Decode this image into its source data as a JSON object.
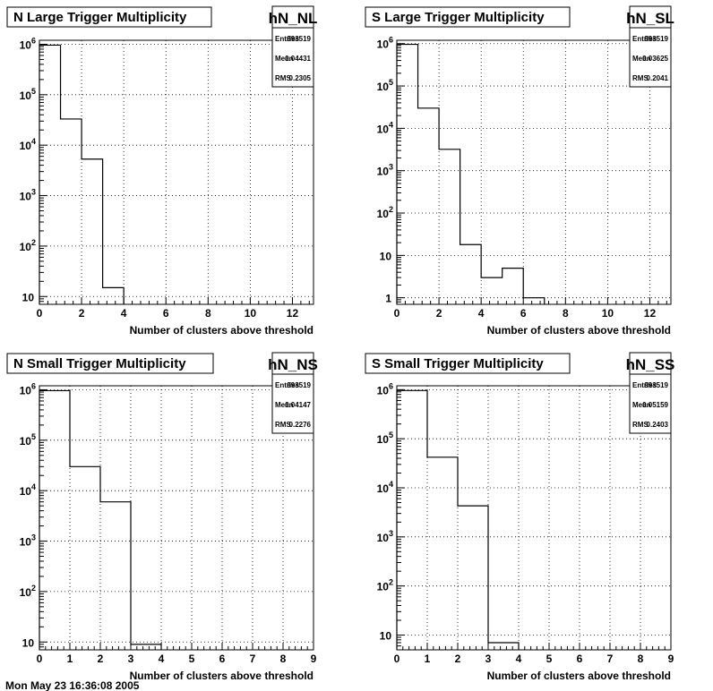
{
  "footer": "Mon May 23 16:36:08 2005",
  "chart_data": [
    {
      "type": "histogram",
      "title": "N Large Trigger Multiplicity",
      "stats": {
        "name": "hN_NL",
        "entries_label": "Entries",
        "entries": "993519",
        "mean_label": "Mean",
        "mean": "0.04431",
        "rms_label": "RMS",
        "rms": "0.2305"
      },
      "xlabel": "Number of clusters above threshold",
      "xlim": [
        0,
        13
      ],
      "xticks": [
        0,
        2,
        4,
        6,
        8,
        10,
        12
      ],
      "ylim": [
        7,
        1200000
      ],
      "yscale": "log",
      "yticks": [
        {
          "value": 10,
          "base": "10",
          "exp": ""
        },
        {
          "value": 100,
          "base": "10",
          "exp": "2"
        },
        {
          "value": 1000,
          "base": "10",
          "exp": "3"
        },
        {
          "value": 10000,
          "base": "10",
          "exp": "4"
        },
        {
          "value": 100000,
          "base": "10",
          "exp": "5"
        },
        {
          "value": 1000000,
          "base": "10",
          "exp": "6"
        }
      ],
      "bins": [
        0,
        1,
        2,
        3,
        4
      ],
      "counts": [
        960000,
        33000,
        5300,
        15
      ]
    },
    {
      "type": "histogram",
      "title": "S Large Trigger Multiplicity",
      "stats": {
        "name": "hN_SL",
        "entries_label": "Entries",
        "entries": "993519",
        "mean_label": "Mean",
        "mean": "0.03625",
        "rms_label": "RMS",
        "rms": "0.2041"
      },
      "xlabel": "Number of clusters above threshold",
      "xlim": [
        0,
        13
      ],
      "xticks": [
        0,
        2,
        4,
        6,
        8,
        10,
        12
      ],
      "ylim": [
        0.7,
        1200000
      ],
      "yscale": "log",
      "yticks": [
        {
          "value": 1,
          "base": "1",
          "exp": ""
        },
        {
          "value": 10,
          "base": "10",
          "exp": ""
        },
        {
          "value": 100,
          "base": "10",
          "exp": "2"
        },
        {
          "value": 1000,
          "base": "10",
          "exp": "3"
        },
        {
          "value": 10000,
          "base": "10",
          "exp": "4"
        },
        {
          "value": 100000,
          "base": "10",
          "exp": "5"
        },
        {
          "value": 1000000,
          "base": "10",
          "exp": "6"
        }
      ],
      "bins": [
        0,
        1,
        2,
        3,
        4,
        5,
        6,
        7
      ],
      "counts": [
        960000,
        30000,
        3200,
        18,
        3,
        5,
        1
      ]
    },
    {
      "type": "histogram",
      "title": "N Small Trigger Multiplicity",
      "stats": {
        "name": "hN_NS",
        "entries_label": "Entries",
        "entries": "993519",
        "mean_label": "Mean",
        "mean": "0.04147",
        "rms_label": "RMS",
        "rms": "0.2276"
      },
      "xlabel": "Number of clusters above threshold",
      "xlim": [
        0,
        9
      ],
      "xticks": [
        0,
        1,
        2,
        3,
        4,
        5,
        6,
        7,
        8,
        9
      ],
      "ylim": [
        7,
        1200000
      ],
      "yscale": "log",
      "yticks": [
        {
          "value": 10,
          "base": "10",
          "exp": ""
        },
        {
          "value": 100,
          "base": "10",
          "exp": "2"
        },
        {
          "value": 1000,
          "base": "10",
          "exp": "3"
        },
        {
          "value": 10000,
          "base": "10",
          "exp": "4"
        },
        {
          "value": 100000,
          "base": "10",
          "exp": "5"
        },
        {
          "value": 1000000,
          "base": "10",
          "exp": "6"
        }
      ],
      "bins": [
        0,
        1,
        2,
        3,
        4
      ],
      "counts": [
        960000,
        30000,
        6000,
        9
      ]
    },
    {
      "type": "histogram",
      "title": "S Small Trigger Multiplicity",
      "stats": {
        "name": "hN_SS",
        "entries_label": "Entries",
        "entries": "993519",
        "mean_label": "Mean",
        "mean": "0.05159",
        "rms_label": "RMS",
        "rms": "0.2403"
      },
      "xlabel": "Number of clusters above threshold",
      "xlim": [
        0,
        9
      ],
      "xticks": [
        0,
        1,
        2,
        3,
        4,
        5,
        6,
        7,
        8,
        9
      ],
      "ylim": [
        5,
        1200000
      ],
      "yscale": "log",
      "yticks": [
        {
          "value": 10,
          "base": "10",
          "exp": ""
        },
        {
          "value": 100,
          "base": "10",
          "exp": "2"
        },
        {
          "value": 1000,
          "base": "10",
          "exp": "3"
        },
        {
          "value": 10000,
          "base": "10",
          "exp": "4"
        },
        {
          "value": 100000,
          "base": "10",
          "exp": "5"
        },
        {
          "value": 1000000,
          "base": "10",
          "exp": "6"
        }
      ],
      "bins": [
        0,
        1,
        2,
        3,
        4
      ],
      "counts": [
        960000,
        42000,
        4300,
        7
      ]
    }
  ]
}
